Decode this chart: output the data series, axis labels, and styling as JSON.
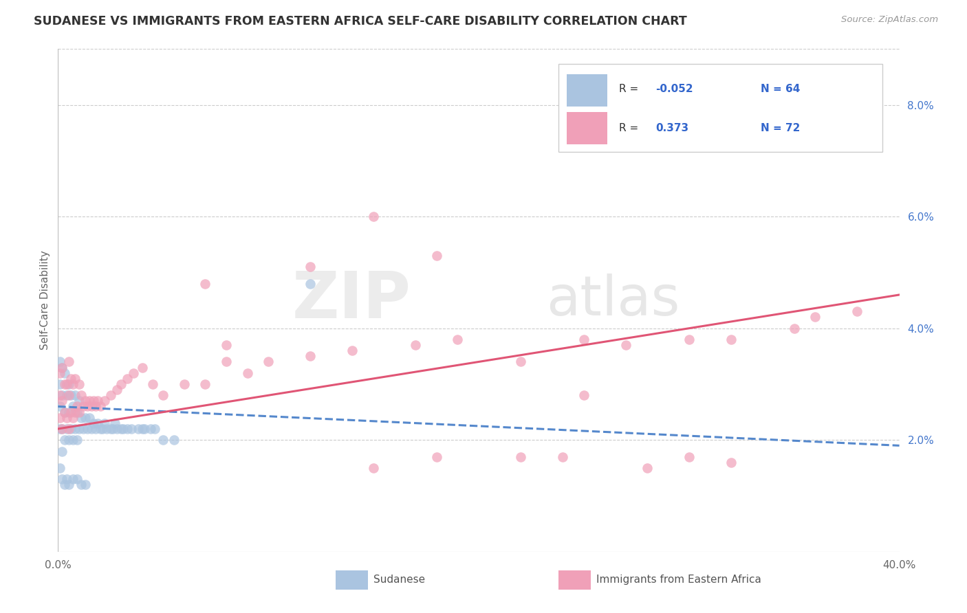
{
  "title": "SUDANESE VS IMMIGRANTS FROM EASTERN AFRICA SELF-CARE DISABILITY CORRELATION CHART",
  "source": "Source: ZipAtlas.com",
  "ylabel": "Self-Care Disability",
  "xlim": [
    0.0,
    0.4
  ],
  "ylim": [
    0.0,
    0.09
  ],
  "color_sudanese": "#aac4e0",
  "color_eastern": "#f0a0b8",
  "color_line_sudanese": "#5588cc",
  "color_line_eastern": "#e05575",
  "background_color": "#ffffff",
  "grid_color": "#cccccc",
  "watermark_zip": "ZIP",
  "watermark_atlas": "atlas",
  "line_sud_x0": 0.0,
  "line_sud_y0": 0.026,
  "line_sud_x1": 0.4,
  "line_sud_y1": 0.019,
  "line_east_x0": 0.0,
  "line_east_y0": 0.022,
  "line_east_x1": 0.4,
  "line_east_y1": 0.046,
  "sud_points_x": [
    0.001,
    0.001,
    0.001,
    0.001,
    0.002,
    0.002,
    0.002,
    0.002,
    0.003,
    0.003,
    0.003,
    0.004,
    0.004,
    0.005,
    0.005,
    0.005,
    0.006,
    0.006,
    0.007,
    0.007,
    0.008,
    0.008,
    0.009,
    0.009,
    0.01,
    0.01,
    0.011,
    0.012,
    0.013,
    0.014,
    0.015,
    0.016,
    0.017,
    0.018,
    0.019,
    0.02,
    0.021,
    0.022,
    0.023,
    0.025,
    0.026,
    0.027,
    0.028,
    0.03,
    0.031,
    0.033,
    0.035,
    0.038,
    0.04,
    0.041,
    0.044,
    0.046,
    0.05,
    0.055,
    0.12,
    0.001,
    0.002,
    0.003,
    0.004,
    0.005,
    0.007,
    0.009,
    0.011,
    0.013
  ],
  "sud_points_y": [
    0.022,
    0.026,
    0.03,
    0.034,
    0.018,
    0.022,
    0.028,
    0.033,
    0.02,
    0.025,
    0.032,
    0.022,
    0.028,
    0.02,
    0.025,
    0.03,
    0.022,
    0.028,
    0.02,
    0.026,
    0.022,
    0.028,
    0.02,
    0.025,
    0.022,
    0.027,
    0.024,
    0.022,
    0.024,
    0.022,
    0.024,
    0.022,
    0.023,
    0.022,
    0.023,
    0.022,
    0.022,
    0.023,
    0.022,
    0.022,
    0.022,
    0.023,
    0.022,
    0.022,
    0.022,
    0.022,
    0.022,
    0.022,
    0.022,
    0.022,
    0.022,
    0.022,
    0.02,
    0.02,
    0.048,
    0.015,
    0.013,
    0.012,
    0.013,
    0.012,
    0.013,
    0.013,
    0.012,
    0.012
  ],
  "east_points_x": [
    0.001,
    0.001,
    0.001,
    0.002,
    0.002,
    0.002,
    0.003,
    0.003,
    0.004,
    0.004,
    0.005,
    0.005,
    0.005,
    0.006,
    0.006,
    0.007,
    0.007,
    0.008,
    0.008,
    0.009,
    0.01,
    0.01,
    0.011,
    0.012,
    0.013,
    0.014,
    0.015,
    0.016,
    0.017,
    0.018,
    0.019,
    0.02,
    0.022,
    0.025,
    0.028,
    0.03,
    0.033,
    0.036,
    0.04,
    0.045,
    0.05,
    0.06,
    0.07,
    0.08,
    0.09,
    0.1,
    0.12,
    0.14,
    0.17,
    0.19,
    0.22,
    0.25,
    0.27,
    0.3,
    0.32,
    0.35,
    0.36,
    0.38,
    0.35,
    0.08,
    0.18,
    0.24,
    0.15,
    0.28,
    0.07,
    0.12,
    0.22,
    0.3,
    0.18,
    0.15,
    0.25,
    0.32
  ],
  "east_points_y": [
    0.024,
    0.028,
    0.032,
    0.022,
    0.027,
    0.033,
    0.025,
    0.03,
    0.024,
    0.03,
    0.022,
    0.028,
    0.034,
    0.025,
    0.031,
    0.024,
    0.03,
    0.025,
    0.031,
    0.026,
    0.025,
    0.03,
    0.028,
    0.026,
    0.027,
    0.026,
    0.027,
    0.026,
    0.027,
    0.026,
    0.027,
    0.026,
    0.027,
    0.028,
    0.029,
    0.03,
    0.031,
    0.032,
    0.033,
    0.03,
    0.028,
    0.03,
    0.03,
    0.034,
    0.032,
    0.034,
    0.035,
    0.036,
    0.037,
    0.038,
    0.034,
    0.028,
    0.037,
    0.038,
    0.038,
    0.04,
    0.042,
    0.043,
    0.075,
    0.037,
    0.017,
    0.017,
    0.015,
    0.015,
    0.048,
    0.051,
    0.017,
    0.017,
    0.053,
    0.06,
    0.038,
    0.016
  ]
}
